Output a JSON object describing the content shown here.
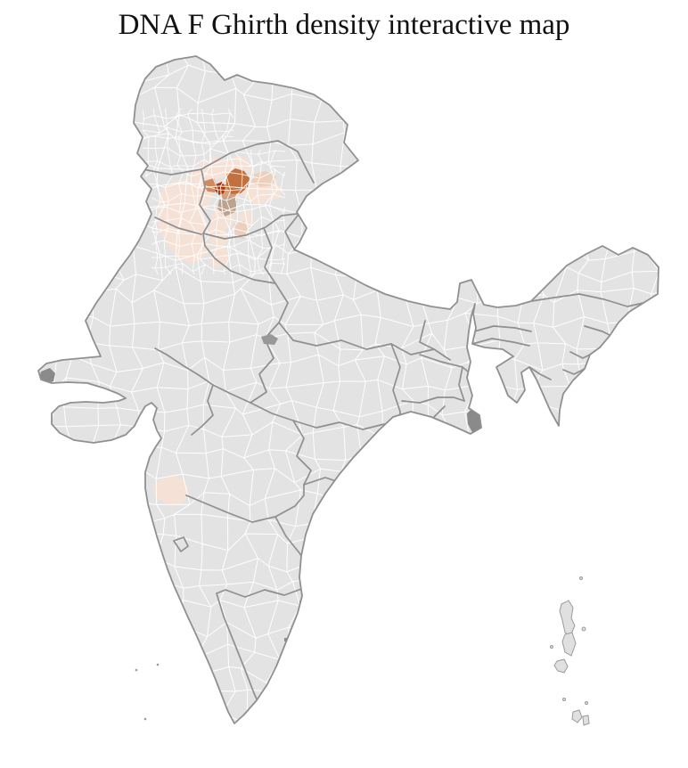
{
  "header": {
    "title": "DNA F Ghirth density interactive map"
  },
  "map": {
    "colors": {
      "background": "#ffffff",
      "land": "#e3e3e3",
      "district_border": "#ffffff",
      "state_border": "#8f8f8f",
      "outline": "#909090",
      "terrain_dark": "#8a8a8a",
      "terrain_dark_soft": "#989898",
      "island_fill": "#e0e0e0",
      "island_stroke": "#9a9a9a"
    },
    "density_scale": {
      "none": "#e3e3e3",
      "very_low": "#f5e1d6",
      "low": "#eccfbc",
      "medium_low": "#d89f7d",
      "medium": "#d08a63",
      "high": "#c2703e",
      "very_high": "#a63a0e",
      "muted_tan": "#bda28f"
    }
  }
}
